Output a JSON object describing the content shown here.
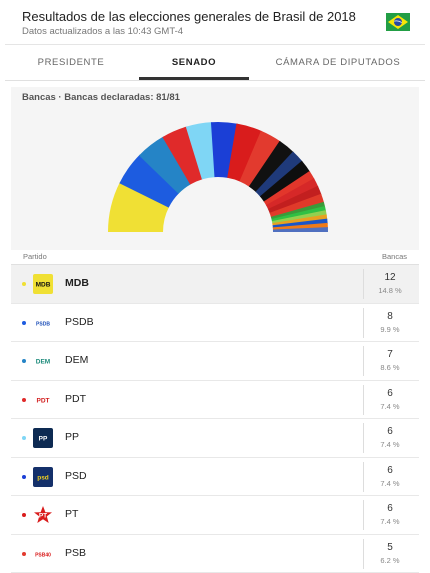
{
  "header": {
    "title": "Resultados de las elecciones generales de Brasil de 2018",
    "subtitle": "Datos actualizados a las 10:43 GMT-4"
  },
  "tabs": [
    {
      "label": "PRESIDENTE",
      "active": false
    },
    {
      "label": "SENADO",
      "active": true
    },
    {
      "label": "CÁMARA DE DIPUTADOS",
      "active": false
    }
  ],
  "summary": "Bancas · Bancas declaradas: 81/81",
  "columns": {
    "party": "Partido",
    "seats": "Bancas"
  },
  "hemicycle": {
    "segments": [
      {
        "seats": 12,
        "color": "#f0e034"
      },
      {
        "seats": 8,
        "color": "#1d5ce0"
      },
      {
        "seats": 7,
        "color": "#2584c6"
      },
      {
        "seats": 6,
        "color": "#e02a2a"
      },
      {
        "seats": 6,
        "color": "#7fd6f5"
      },
      {
        "seats": 6,
        "color": "#1b3fd6"
      },
      {
        "seats": 6,
        "color": "#d91c1c"
      },
      {
        "seats": 5,
        "color": "#e23a2e"
      },
      {
        "seats": 4,
        "color": "#111111"
      },
      {
        "seats": 3,
        "color": "#1f3a7a"
      },
      {
        "seats": 3,
        "color": "#0e0e0e"
      },
      {
        "seats": 2,
        "color": "#e2362b"
      },
      {
        "seats": 2,
        "color": "#d62828"
      },
      {
        "seats": 2,
        "color": "#c21f1f"
      },
      {
        "seats": 2,
        "color": "#e03a2a"
      },
      {
        "seats": 1,
        "color": "#3a9a3a"
      },
      {
        "seats": 1,
        "color": "#2fc044"
      },
      {
        "seats": 1,
        "color": "#92d050"
      },
      {
        "seats": 1,
        "color": "#e8a020"
      },
      {
        "seats": 1,
        "color": "#1a55c8"
      },
      {
        "seats": 1,
        "color": "#f07a18"
      },
      {
        "seats": 1,
        "color": "#5070c0"
      }
    ]
  },
  "parties": [
    {
      "name": "MDB",
      "seats": "12",
      "pct": "14.8 %",
      "dot": "#f0e034",
      "logo_text": "MDB",
      "logo_bg": "#f0e034",
      "logo_fg": "#111111",
      "highlight": true
    },
    {
      "name": "PSDB",
      "seats": "8",
      "pct": "9.9 %",
      "dot": "#1d5ce0",
      "logo_text": "PSDB",
      "logo_bg": "#ffffff",
      "logo_fg": "#1d4fb8",
      "highlight": false
    },
    {
      "name": "DEM",
      "seats": "7",
      "pct": "8.6 %",
      "dot": "#2584c6",
      "logo_text": "DEM",
      "logo_bg": "#ffffff",
      "logo_fg": "#1b8a7a",
      "highlight": false
    },
    {
      "name": "PDT",
      "seats": "6",
      "pct": "7.4 %",
      "dot": "#e02a2a",
      "logo_text": "PDT",
      "logo_bg": "#ffffff",
      "logo_fg": "#d32020",
      "highlight": false
    },
    {
      "name": "PP",
      "seats": "6",
      "pct": "7.4 %",
      "dot": "#7fd6f5",
      "logo_text": "PP",
      "logo_bg": "#0d2a52",
      "logo_fg": "#ffffff",
      "highlight": false
    },
    {
      "name": "PSD",
      "seats": "6",
      "pct": "7.4 %",
      "dot": "#1b3fd6",
      "logo_text": "psd",
      "logo_bg": "#14306a",
      "logo_fg": "#f0d020",
      "highlight": false
    },
    {
      "name": "PT",
      "seats": "6",
      "pct": "7.4 %",
      "dot": "#d91c1c",
      "logo_text": "PT",
      "logo_bg": "#ffffff",
      "logo_fg": "#d91c1c",
      "highlight": false
    },
    {
      "name": "PSB",
      "seats": "5",
      "pct": "6.2 %",
      "dot": "#e23a2e",
      "logo_text": "PSB40",
      "logo_bg": "#ffffff",
      "logo_fg": "#d91c1c",
      "highlight": false
    }
  ]
}
